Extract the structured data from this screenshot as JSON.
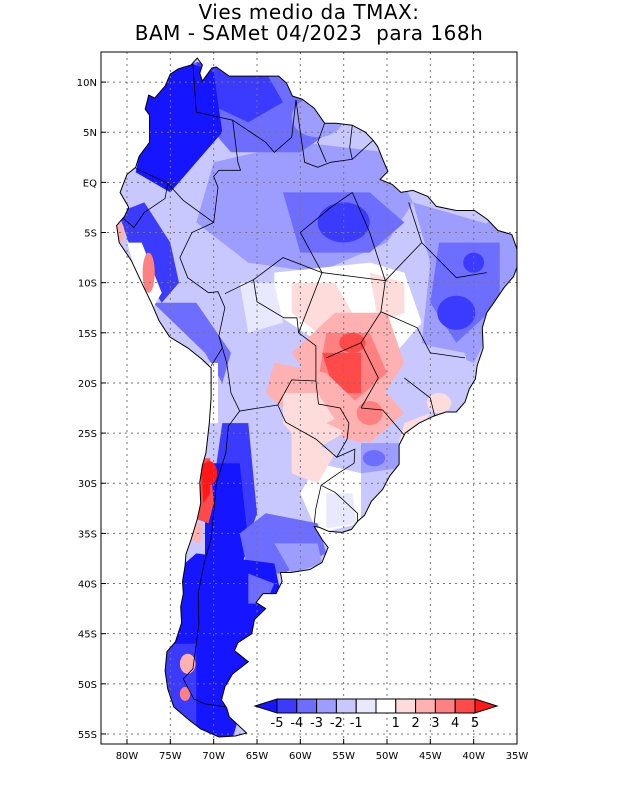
{
  "title": {
    "line1": "Vies medio da TMAX:",
    "line2": "BAM - SAMet 04/2023  para 168h"
  },
  "map": {
    "region": "South America",
    "lon_range": [
      -83,
      -35
    ],
    "lat_range": [
      -56,
      13
    ],
    "lat_ticks": [
      {
        "value": 10,
        "label": "10N"
      },
      {
        "value": 5,
        "label": "5N"
      },
      {
        "value": 0,
        "label": "EQ"
      },
      {
        "value": -5,
        "label": "5S"
      },
      {
        "value": -10,
        "label": "10S"
      },
      {
        "value": -15,
        "label": "15S"
      },
      {
        "value": -20,
        "label": "20S"
      },
      {
        "value": -25,
        "label": "25S"
      },
      {
        "value": -30,
        "label": "30S"
      },
      {
        "value": -35,
        "label": "35S"
      },
      {
        "value": -40,
        "label": "40S"
      },
      {
        "value": -45,
        "label": "45S"
      },
      {
        "value": -50,
        "label": "50S"
      },
      {
        "value": -55,
        "label": "55S"
      }
    ],
    "lon_ticks": [
      {
        "value": -80,
        "label": "80W"
      },
      {
        "value": -75,
        "label": "75W"
      },
      {
        "value": -70,
        "label": "70W"
      },
      {
        "value": -65,
        "label": "65W"
      },
      {
        "value": -60,
        "label": "60W"
      },
      {
        "value": -55,
        "label": "55W"
      },
      {
        "value": -50,
        "label": "50W"
      },
      {
        "value": -45,
        "label": "45W"
      },
      {
        "value": -40,
        "label": "40W"
      },
      {
        "value": -35,
        "label": "35W"
      }
    ],
    "field_regions": [
      {
        "name": "colombia-venezuela-cold",
        "bias": -5
      },
      {
        "name": "amazon-mild-cold",
        "bias": -2
      },
      {
        "name": "central-brazil-warm",
        "bias": 3
      },
      {
        "name": "mato-grosso-sul-hot",
        "bias": 4
      },
      {
        "name": "northeast-brazil-cold",
        "bias": -3
      },
      {
        "name": "argentina-cold",
        "bias": -5
      },
      {
        "name": "chile-coast-hot",
        "bias": 5
      },
      {
        "name": "uruguay-neutral",
        "bias": 1
      }
    ]
  },
  "colorbar": {
    "labels": [
      "-5",
      "-4",
      "-3",
      "-2",
      "-1",
      "1",
      "2",
      "3",
      "4",
      "5"
    ],
    "colors": [
      "#1515ff",
      "#3b3bff",
      "#6d6dff",
      "#9d9dff",
      "#c8c8ff",
      "#e8e8ff",
      "#ffffff",
      "#ffdcdc",
      "#ffb0b0",
      "#ff8080",
      "#ff4a4a",
      "#ff1818"
    ]
  }
}
